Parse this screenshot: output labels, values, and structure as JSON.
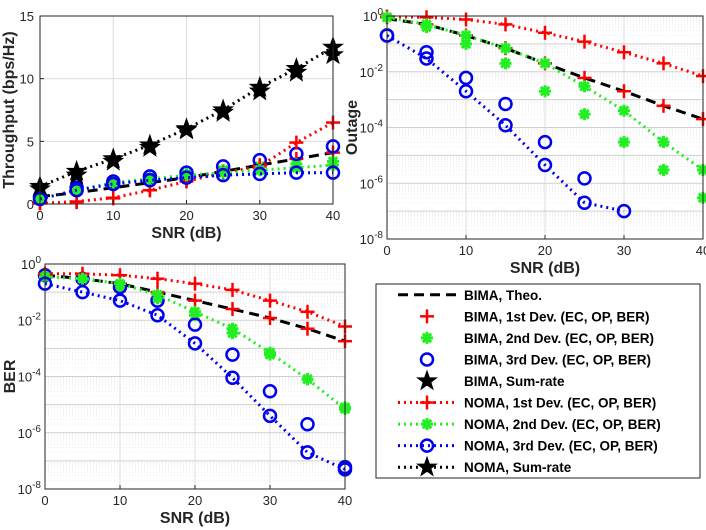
{
  "chart_data": [
    {
      "id": "throughput",
      "type": "line",
      "scale": "linear",
      "xlabel": "SNR (dB)",
      "ylabel": "Throughput (bps/Hz)",
      "xlim": [
        0,
        40
      ],
      "ylim": [
        0,
        15
      ],
      "xticks": [
        "0",
        "10",
        "20",
        "30",
        "40"
      ],
      "yticks": [
        "0",
        "5",
        "10",
        "15"
      ],
      "x": [
        0,
        5,
        10,
        15,
        20,
        25,
        30,
        35,
        40
      ],
      "series": [
        {
          "name": "BIMA, Theo.",
          "values": [
            0.6,
            0.9,
            1.3,
            1.7,
            2.1,
            2.6,
            3.1,
            3.6,
            4.1
          ]
        },
        {
          "name": "BIMA, 1st Dev. (EC, OP, BER)",
          "values": [
            0.05,
            0.15,
            0.45,
            1.1,
            1.9,
            2.6,
            3.1,
            3.6,
            4.1
          ]
        },
        {
          "name": "BIMA, 2nd Dev. (EC, OP, BER)",
          "values": [
            0.5,
            1.1,
            1.7,
            2.1,
            2.4,
            2.7,
            3.0,
            3.2,
            3.4
          ]
        },
        {
          "name": "BIMA, 3rd Dev. (EC, OP, BER)",
          "values": [
            0.6,
            1.3,
            1.8,
            2.2,
            2.5,
            3.0,
            3.5,
            4.0,
            4.6
          ]
        },
        {
          "name": "BIMA, Sum-rate",
          "values": [
            1.2,
            2.3,
            3.4,
            4.5,
            5.9,
            7.3,
            9.0,
            10.5,
            11.9
          ]
        },
        {
          "name": "NOMA, 1st Dev. (EC, OP, BER)",
          "values": [
            0.05,
            0.2,
            0.5,
            1.1,
            1.8,
            2.5,
            3.0,
            4.9,
            6.5
          ]
        },
        {
          "name": "NOMA, 2nd Dev. (EC, OP, BER)",
          "values": [
            0.4,
            1.1,
            1.7,
            2.0,
            2.3,
            2.5,
            2.7,
            2.9,
            3.1
          ]
        },
        {
          "name": "NOMA, 3rd Dev. (EC, OP, BER)",
          "values": [
            0.4,
            1.1,
            1.6,
            1.9,
            2.1,
            2.3,
            2.4,
            2.5,
            2.5
          ]
        },
        {
          "name": "NOMA, Sum-rate",
          "values": [
            1.4,
            2.6,
            3.6,
            4.7,
            6.0,
            7.5,
            9.3,
            10.8,
            12.5
          ]
        }
      ]
    },
    {
      "id": "outage",
      "type": "line",
      "scale": "log",
      "xlabel": "SNR (dB)",
      "ylabel": "Outage",
      "xlim": [
        0,
        40
      ],
      "ylim_exp": [
        -8,
        0
      ],
      "xticks": [
        "0",
        "10",
        "20",
        "30",
        "40"
      ],
      "yticks": [
        {
          "base": "10",
          "exp": "0"
        },
        {
          "base": "10",
          "exp": "-2"
        },
        {
          "base": "10",
          "exp": "-4"
        },
        {
          "base": "10",
          "exp": "-6"
        },
        {
          "base": "10",
          "exp": "-8"
        }
      ],
      "x": [
        0,
        5,
        10,
        15,
        20,
        25,
        30,
        35,
        40
      ],
      "series": [
        {
          "name": "BIMA, Theo.",
          "values": [
            0.8,
            0.5,
            0.2,
            0.07,
            0.02,
            0.006,
            0.002,
            0.0006,
            0.0002
          ]
        },
        {
          "name": "BIMA, 1st Dev. (EC, OP, BER)",
          "values": [
            0.9,
            0.5,
            0.2,
            0.07,
            0.02,
            0.006,
            0.002,
            0.0006,
            0.0002
          ]
        },
        {
          "name": "BIMA, 2nd Dev. (EC, OP, BER)",
          "values": [
            0.9,
            0.4,
            0.1,
            0.02,
            0.002,
            0.0003,
            3e-05,
            3e-06,
            3e-07
          ]
        },
        {
          "name": "BIMA, 3rd Dev. (EC, OP, BER)",
          "values": [
            0.2,
            0.05,
            0.006,
            0.0007,
            3e-05,
            1.5e-06,
            null,
            null,
            null
          ]
        },
        {
          "name": "NOMA, 1st Dev. (EC, OP, BER)",
          "values": [
            0.95,
            0.9,
            0.75,
            0.5,
            0.25,
            0.12,
            0.05,
            0.02,
            0.007
          ]
        },
        {
          "name": "NOMA, 2nd Dev. (EC, OP, BER)",
          "values": [
            0.9,
            0.5,
            0.2,
            0.07,
            0.02,
            0.003,
            0.0004,
            3e-05,
            3e-06
          ]
        },
        {
          "name": "NOMA, 3rd Dev. (EC, OP, BER)",
          "values": [
            0.2,
            0.03,
            0.002,
            0.00012,
            4.5e-06,
            2e-07,
            1e-07,
            null,
            null
          ]
        }
      ]
    },
    {
      "id": "ber",
      "type": "line",
      "scale": "log",
      "xlabel": "SNR (dB)",
      "ylabel": "BER",
      "xlim": [
        0,
        40
      ],
      "ylim_exp": [
        -8,
        0
      ],
      "xticks": [
        "0",
        "10",
        "20",
        "30",
        "40"
      ],
      "yticks": [
        {
          "base": "10",
          "exp": "0"
        },
        {
          "base": "10",
          "exp": "-2"
        },
        {
          "base": "10",
          "exp": "-4"
        },
        {
          "base": "10",
          "exp": "-6"
        },
        {
          "base": "10",
          "exp": "-8"
        }
      ],
      "x": [
        0,
        5,
        10,
        15,
        20,
        25,
        30,
        35,
        40
      ],
      "series": [
        {
          "name": "BIMA, Theo.",
          "values": [
            0.4,
            0.3,
            0.2,
            0.1,
            0.05,
            0.025,
            0.012,
            0.005,
            0.0018
          ]
        },
        {
          "name": "BIMA, 1st Dev. (EC, OP, BER)",
          "values": [
            0.4,
            0.3,
            0.2,
            0.1,
            0.05,
            0.025,
            0.012,
            0.005,
            0.0018
          ]
        },
        {
          "name": "BIMA, 2nd Dev. (EC, OP, BER)",
          "values": [
            0.4,
            0.3,
            0.15,
            0.06,
            0.015,
            0.0035,
            0.0006,
            8e-05,
            8e-06
          ]
        },
        {
          "name": "BIMA, 3rd Dev. (EC, OP, BER)",
          "values": [
            0.4,
            0.3,
            0.15,
            0.05,
            0.007,
            0.0006,
            3e-05,
            2e-06,
            6e-08
          ]
        },
        {
          "name": "NOMA, 1st Dev. (EC, OP, BER)",
          "values": [
            0.45,
            0.45,
            0.4,
            0.3,
            0.2,
            0.12,
            0.05,
            0.02,
            0.006
          ]
        },
        {
          "name": "NOMA, 2nd Dev. (EC, OP, BER)",
          "values": [
            0.35,
            0.3,
            0.2,
            0.08,
            0.02,
            0.005,
            0.0007,
            8e-05,
            7e-06
          ]
        },
        {
          "name": "NOMA, 3rd Dev. (EC, OP, BER)",
          "values": [
            0.2,
            0.1,
            0.05,
            0.015,
            0.0015,
            9e-05,
            4e-06,
            2e-07,
            5e-08
          ]
        }
      ]
    }
  ],
  "legend": {
    "items": [
      {
        "label": "BIMA, Theo.",
        "color": "#000000",
        "marker": "none",
        "dash": "dashed"
      },
      {
        "label": "BIMA, 1st Dev. (EC, OP, BER)",
        "color": "#ff0000",
        "marker": "plus",
        "dash": "none"
      },
      {
        "label": "BIMA, 2nd Dev. (EC, OP, BER)",
        "color": "#22ee22",
        "marker": "asterisk",
        "dash": "none"
      },
      {
        "label": "BIMA, 3rd Dev. (EC, OP, BER)",
        "color": "#0000ee",
        "marker": "circle",
        "dash": "none"
      },
      {
        "label": "BIMA, Sum-rate",
        "color": "#000000",
        "marker": "star",
        "dash": "none"
      },
      {
        "label": "NOMA, 1st Dev. (EC, OP, BER)",
        "color": "#ff0000",
        "marker": "plus",
        "dash": "dotted"
      },
      {
        "label": "NOMA, 2nd Dev. (EC, OP, BER)",
        "color": "#22ee22",
        "marker": "asterisk",
        "dash": "dotted"
      },
      {
        "label": "NOMA, 3rd Dev. (EC, OP, BER)",
        "color": "#0000ee",
        "marker": "circle",
        "dash": "dotted"
      },
      {
        "label": "NOMA, Sum-rate",
        "color": "#000000",
        "marker": "star",
        "dash": "dotted"
      }
    ]
  }
}
